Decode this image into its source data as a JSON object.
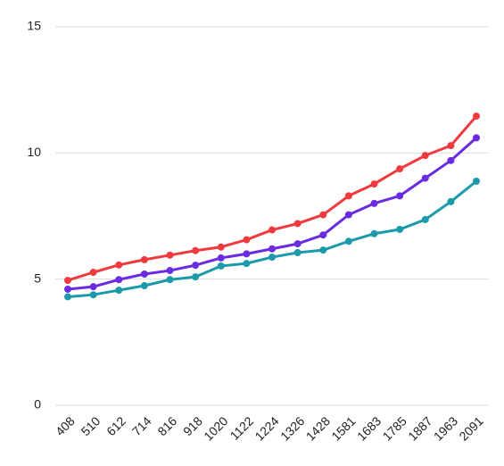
{
  "chart_data": {
    "type": "line",
    "categories": [
      "408",
      "510",
      "612",
      "714",
      "816",
      "918",
      "1020",
      "1122",
      "1224",
      "1326",
      "1428",
      "1581",
      "1683",
      "1785",
      "1887",
      "1963",
      "2091"
    ],
    "series": [
      {
        "color": "#f03a3e",
        "values": [
          4.95,
          5.27,
          5.56,
          5.77,
          5.95,
          6.13,
          6.27,
          6.56,
          6.95,
          7.2,
          7.55,
          8.3,
          8.77,
          9.37,
          9.9,
          10.29,
          11.46
        ]
      },
      {
        "color": "#6a2ce0",
        "values": [
          4.6,
          4.7,
          4.98,
          5.2,
          5.34,
          5.55,
          5.84,
          6.0,
          6.2,
          6.4,
          6.75,
          7.55,
          8.0,
          8.3,
          9.0,
          9.7,
          10.6
        ]
      },
      {
        "color": "#1a9aaa",
        "values": [
          4.3,
          4.38,
          4.56,
          4.74,
          4.98,
          5.09,
          5.52,
          5.62,
          5.87,
          6.05,
          6.15,
          6.5,
          6.8,
          6.97,
          7.36,
          8.07,
          8.88
        ]
      }
    ],
    "ylim": [
      0,
      15
    ],
    "yticks": [
      0,
      5,
      10,
      15
    ],
    "grid": true
  }
}
